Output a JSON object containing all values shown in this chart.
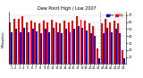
{
  "title": "Dew Point High / Low 2007",
  "days": [
    "1",
    "2",
    "3",
    "4",
    "5",
    "6",
    "7",
    "8",
    "9",
    "10",
    "11",
    "12",
    "13",
    "14",
    "15",
    "16",
    "17",
    "18",
    "19",
    "20",
    "21",
    "22",
    "23",
    "24",
    "25",
    "26",
    "27",
    "28"
  ],
  "high": [
    60,
    65,
    65,
    68,
    60,
    62,
    60,
    58,
    62,
    60,
    64,
    60,
    58,
    62,
    60,
    62,
    68,
    64,
    62,
    58,
    55,
    22,
    58,
    65,
    60,
    62,
    58,
    20
  ],
  "low": [
    45,
    50,
    46,
    52,
    46,
    50,
    47,
    44,
    50,
    46,
    52,
    46,
    44,
    50,
    46,
    50,
    54,
    52,
    48,
    44,
    40,
    8,
    44,
    52,
    46,
    50,
    44,
    8
  ],
  "high_color": "#ff0000",
  "low_color": "#0000cc",
  "bg_color": "#ffffff",
  "plot_bg": "#ffffff",
  "ylim": [
    0,
    75
  ],
  "yticks": [
    10,
    20,
    30,
    40,
    50,
    60,
    70
  ],
  "dashed_line_x": 21.5,
  "figsize": [
    1.6,
    0.87
  ],
  "dpi": 100
}
